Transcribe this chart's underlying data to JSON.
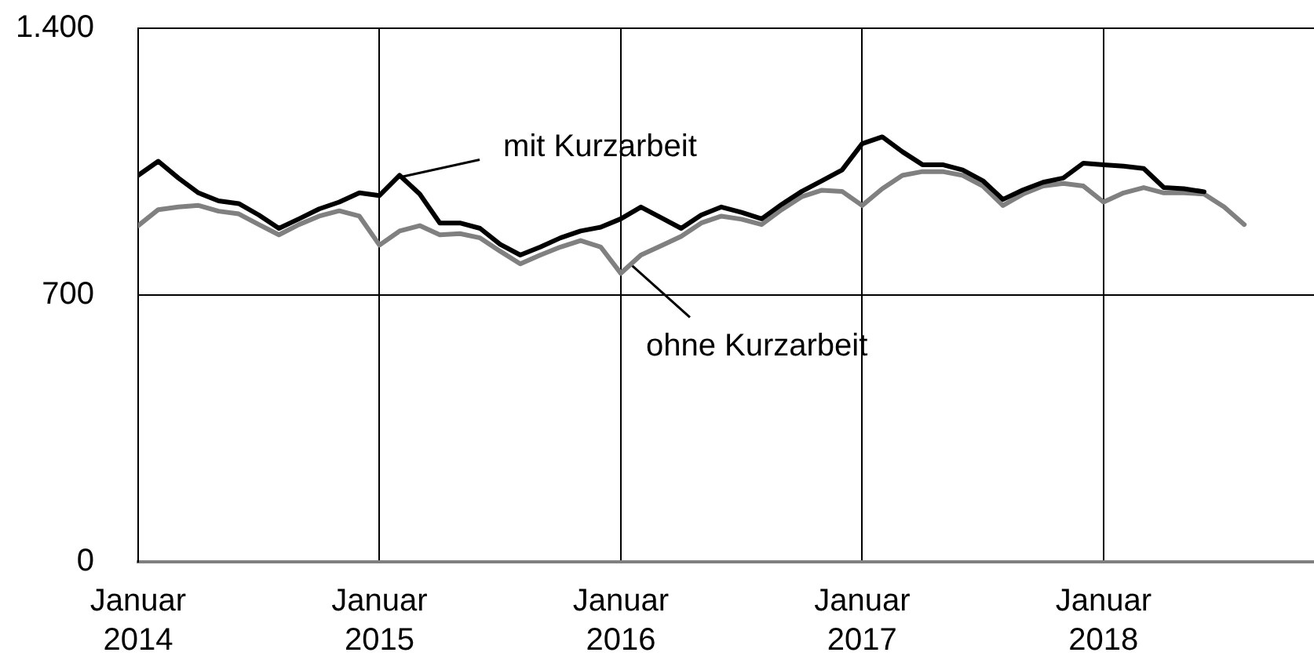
{
  "chart_data": {
    "type": "line",
    "x": [
      "2014-01",
      "2014-02",
      "2014-03",
      "2014-04",
      "2014-05",
      "2014-06",
      "2014-07",
      "2014-08",
      "2014-09",
      "2014-10",
      "2014-11",
      "2014-12",
      "2015-01",
      "2015-02",
      "2015-03",
      "2015-04",
      "2015-05",
      "2015-06",
      "2015-07",
      "2015-08",
      "2015-09",
      "2015-10",
      "2015-11",
      "2015-12",
      "2016-01",
      "2016-02",
      "2016-03",
      "2016-04",
      "2016-05",
      "2016-06",
      "2016-07",
      "2016-08",
      "2016-09",
      "2016-10",
      "2016-11",
      "2016-12",
      "2017-01",
      "2017-02",
      "2017-03",
      "2017-04",
      "2017-05",
      "2017-06",
      "2017-07",
      "2017-08",
      "2017-09",
      "2017-10",
      "2017-11",
      "2017-12",
      "2018-01",
      "2018-02",
      "2018-03",
      "2018-04",
      "2018-05",
      "2018-06",
      "2018-07",
      "2018-08"
    ],
    "series": [
      {
        "name": "mit Kurzarbeit",
        "color": "#000000",
        "values": [
          1014,
          1051,
          1007,
          968,
          947,
          940,
          910,
          875,
          900,
          926,
          944,
          968,
          961,
          1014,
          965,
          889,
          889,
          875,
          833,
          805,
          826,
          850,
          868,
          878,
          900,
          931,
          903,
          875,
          910,
          931,
          917,
          900,
          938,
          972,
          1000,
          1028,
          1097,
          1115,
          1076,
          1042,
          1042,
          1028,
          1000,
          951,
          976,
          996,
          1007,
          1046,
          1042,
          1038,
          1032,
          982,
          979,
          971,
          null,
          null
        ]
      },
      {
        "name": "ohne Kurzarbeit",
        "color": "#808080",
        "values": [
          882,
          924,
          931,
          935,
          920,
          913,
          885,
          858,
          885,
          907,
          921,
          907,
          831,
          868,
          882,
          858,
          861,
          850,
          815,
          782,
          805,
          826,
          843,
          826,
          757,
          805,
          829,
          854,
          889,
          907,
          899,
          885,
          924,
          958,
          975,
          972,
          935,
          979,
          1014,
          1024,
          1024,
          1014,
          986,
          935,
          965,
          986,
          993,
          986,
          944,
          968,
          982,
          968,
          968,
          965,
          931,
          885
        ]
      }
    ],
    "xlim": [
      "2014-01",
      "2018-11-15"
    ],
    "xticks": [
      {
        "value": "2014-01",
        "label": "Januar 2014"
      },
      {
        "value": "2015-01",
        "label": "Januar 2015"
      },
      {
        "value": "2016-01",
        "label": "Januar 2016"
      },
      {
        "value": "2017-01",
        "label": "Januar 2017"
      },
      {
        "value": "2018-01",
        "label": "Januar 2018"
      }
    ],
    "ylim": [
      0,
      1400
    ],
    "yticks": [
      0,
      700,
      {
        "value": 1400,
        "label": "1.400"
      }
    ],
    "grid": true,
    "marker": "none",
    "line_style": "solid"
  }
}
